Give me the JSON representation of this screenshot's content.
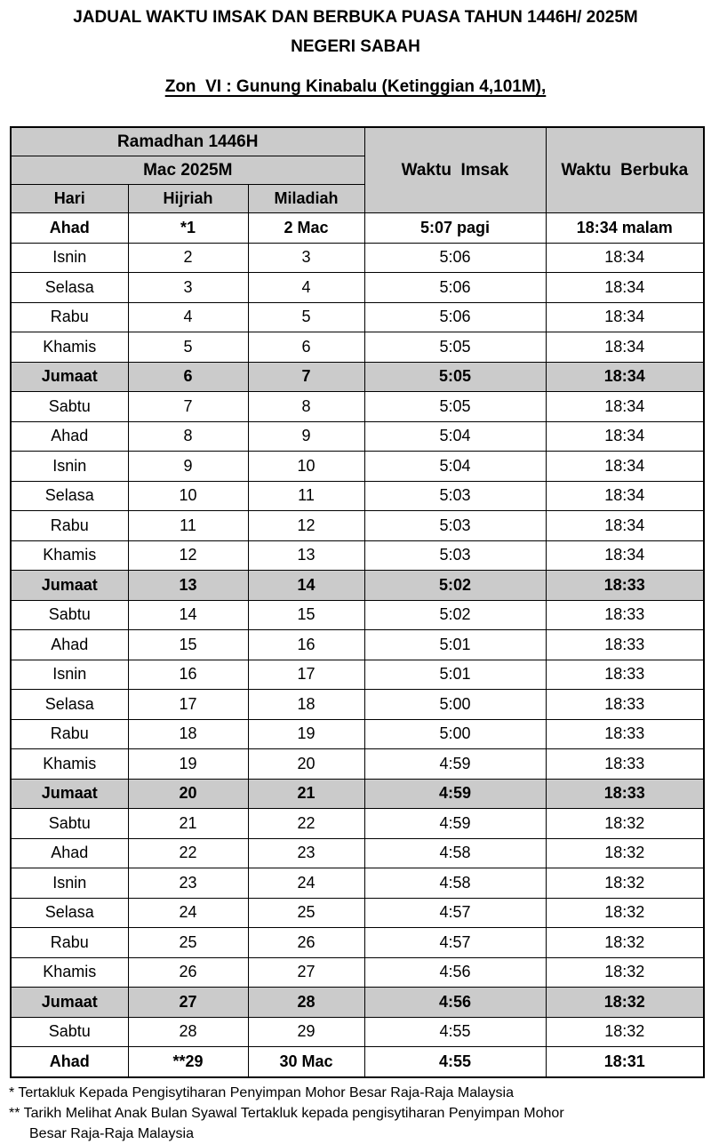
{
  "colors": {
    "shaded": "#cbcbcb",
    "border": "#000000",
    "text": "#000000",
    "background": "#ffffff"
  },
  "titles": {
    "main": "JADUAL WAKTU IMSAK DAN BERBUKA PUASA TAHUN 1446H/ 2025M",
    "sub": "NEGERI SABAH",
    "zone": "Zon  VI : Gunung Kinabalu (Ketinggian 4,101M),"
  },
  "table": {
    "header": {
      "ramadhan": "Ramadhan 1446H",
      "month": "Mac 2025M",
      "day": "Hari",
      "hijriah": "Hijriah",
      "miladiah": "Miladiah",
      "imsak": "Waktu  Imsak",
      "berbuka": "Waktu  Berbuka"
    },
    "rows": [
      {
        "day": "Ahad",
        "hijriah": "*1",
        "miladiah": "2 Mac",
        "imsak": "5:07 pagi",
        "berbuka": "18:34 malam",
        "bold": true,
        "shaded": false
      },
      {
        "day": "Isnin",
        "hijriah": "2",
        "miladiah": "3",
        "imsak": "5:06",
        "berbuka": "18:34",
        "bold": false,
        "shaded": false
      },
      {
        "day": "Selasa",
        "hijriah": "3",
        "miladiah": "4",
        "imsak": "5:06",
        "berbuka": "18:34",
        "bold": false,
        "shaded": false
      },
      {
        "day": "Rabu",
        "hijriah": "4",
        "miladiah": "5",
        "imsak": "5:06",
        "berbuka": "18:34",
        "bold": false,
        "shaded": false
      },
      {
        "day": "Khamis",
        "hijriah": "5",
        "miladiah": "6",
        "imsak": "5:05",
        "berbuka": "18:34",
        "bold": false,
        "shaded": false
      },
      {
        "day": "Jumaat",
        "hijriah": "6",
        "miladiah": "7",
        "imsak": "5:05",
        "berbuka": "18:34",
        "bold": true,
        "shaded": true
      },
      {
        "day": "Sabtu",
        "hijriah": "7",
        "miladiah": "8",
        "imsak": "5:05",
        "berbuka": "18:34",
        "bold": false,
        "shaded": false
      },
      {
        "day": "Ahad",
        "hijriah": "8",
        "miladiah": "9",
        "imsak": "5:04",
        "berbuka": "18:34",
        "bold": false,
        "shaded": false
      },
      {
        "day": "Isnin",
        "hijriah": "9",
        "miladiah": "10",
        "imsak": "5:04",
        "berbuka": "18:34",
        "bold": false,
        "shaded": false
      },
      {
        "day": "Selasa",
        "hijriah": "10",
        "miladiah": "11",
        "imsak": "5:03",
        "berbuka": "18:34",
        "bold": false,
        "shaded": false
      },
      {
        "day": "Rabu",
        "hijriah": "11",
        "miladiah": "12",
        "imsak": "5:03",
        "berbuka": "18:34",
        "bold": false,
        "shaded": false
      },
      {
        "day": "Khamis",
        "hijriah": "12",
        "miladiah": "13",
        "imsak": "5:03",
        "berbuka": "18:34",
        "bold": false,
        "shaded": false
      },
      {
        "day": "Jumaat",
        "hijriah": "13",
        "miladiah": "14",
        "imsak": "5:02",
        "berbuka": "18:33",
        "bold": true,
        "shaded": true
      },
      {
        "day": "Sabtu",
        "hijriah": "14",
        "miladiah": "15",
        "imsak": "5:02",
        "berbuka": "18:33",
        "bold": false,
        "shaded": false
      },
      {
        "day": "Ahad",
        "hijriah": "15",
        "miladiah": "16",
        "imsak": "5:01",
        "berbuka": "18:33",
        "bold": false,
        "shaded": false
      },
      {
        "day": "Isnin",
        "hijriah": "16",
        "miladiah": "17",
        "imsak": "5:01",
        "berbuka": "18:33",
        "bold": false,
        "shaded": false
      },
      {
        "day": "Selasa",
        "hijriah": "17",
        "miladiah": "18",
        "imsak": "5:00",
        "berbuka": "18:33",
        "bold": false,
        "shaded": false
      },
      {
        "day": "Rabu",
        "hijriah": "18",
        "miladiah": "19",
        "imsak": "5:00",
        "berbuka": "18:33",
        "bold": false,
        "shaded": false
      },
      {
        "day": "Khamis",
        "hijriah": "19",
        "miladiah": "20",
        "imsak": "4:59",
        "berbuka": "18:33",
        "bold": false,
        "shaded": false
      },
      {
        "day": "Jumaat",
        "hijriah": "20",
        "miladiah": "21",
        "imsak": "4:59",
        "berbuka": "18:33",
        "bold": true,
        "shaded": true
      },
      {
        "day": "Sabtu",
        "hijriah": "21",
        "miladiah": "22",
        "imsak": "4:59",
        "berbuka": "18:32",
        "bold": false,
        "shaded": false
      },
      {
        "day": "Ahad",
        "hijriah": "22",
        "miladiah": "23",
        "imsak": "4:58",
        "berbuka": "18:32",
        "bold": false,
        "shaded": false
      },
      {
        "day": "Isnin",
        "hijriah": "23",
        "miladiah": "24",
        "imsak": "4:58",
        "berbuka": "18:32",
        "bold": false,
        "shaded": false
      },
      {
        "day": "Selasa",
        "hijriah": "24",
        "miladiah": "25",
        "imsak": "4:57",
        "berbuka": "18:32",
        "bold": false,
        "shaded": false
      },
      {
        "day": "Rabu",
        "hijriah": "25",
        "miladiah": "26",
        "imsak": "4:57",
        "berbuka": "18:32",
        "bold": false,
        "shaded": false
      },
      {
        "day": "Khamis",
        "hijriah": "26",
        "miladiah": "27",
        "imsak": "4:56",
        "berbuka": "18:32",
        "bold": false,
        "shaded": false
      },
      {
        "day": "Jumaat",
        "hijriah": "27",
        "miladiah": "28",
        "imsak": "4:56",
        "berbuka": "18:32",
        "bold": true,
        "shaded": true
      },
      {
        "day": "Sabtu",
        "hijriah": "28",
        "miladiah": "29",
        "imsak": "4:55",
        "berbuka": "18:32",
        "bold": false,
        "shaded": false
      },
      {
        "day": "Ahad",
        "hijriah": "**29",
        "miladiah": "30 Mac",
        "imsak": "4:55",
        "berbuka": "18:31",
        "bold": true,
        "shaded": false
      }
    ]
  },
  "footnotes": [
    {
      "text": "* Tertakluk Kepada Pengisytiharan Penyimpan Mohor Besar Raja-Raja Malaysia",
      "indent": false
    },
    {
      "text": "** Tarikh Melihat Anak Bulan Syawal Tertakluk kepada pengisytiharan Penyimpan Mohor",
      "indent": false
    },
    {
      "text": "Besar Raja-Raja Malaysia",
      "indent": true
    }
  ]
}
